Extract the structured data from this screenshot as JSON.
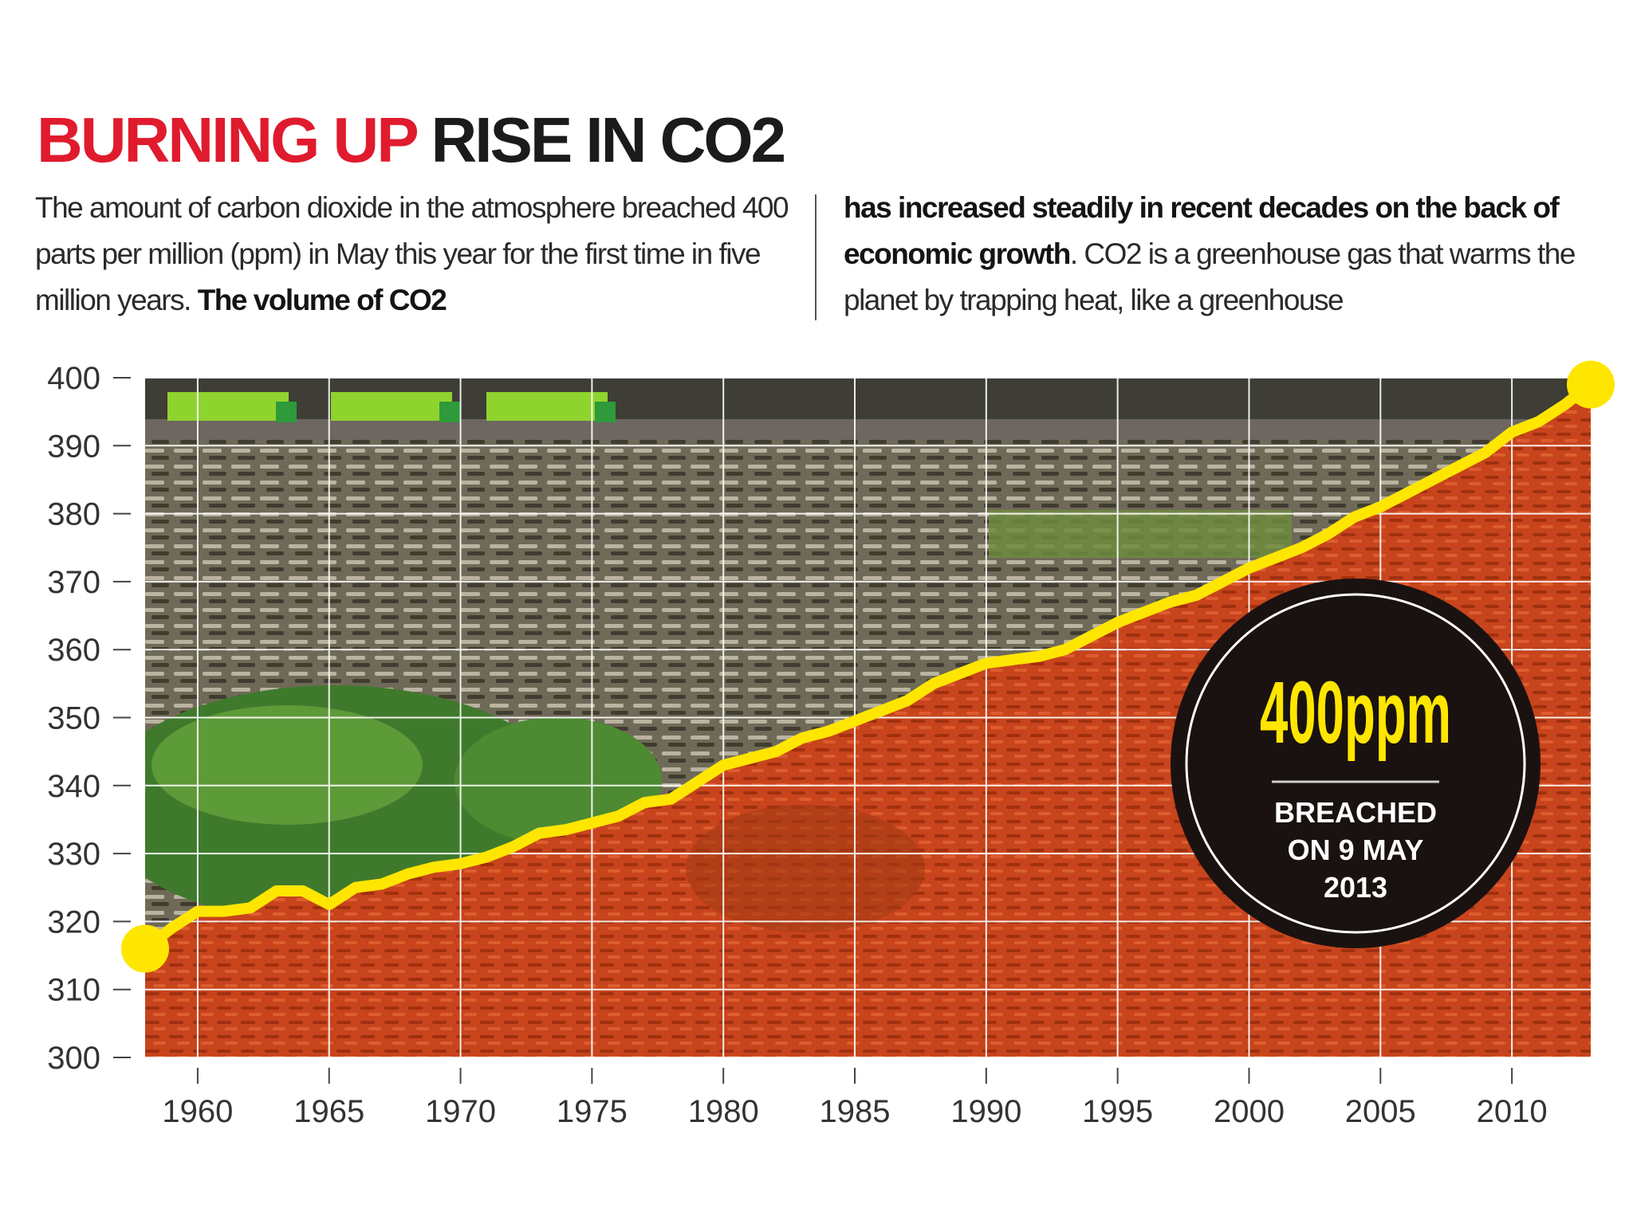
{
  "title": {
    "part1": "BURNING UP",
    "part2": "RISE IN CO2"
  },
  "intro": {
    "col1_text": "The amount of carbon dioxide in the atmosphere breached 400 parts per million (ppm) in May this year for the first time in five million years. ",
    "col1_bold": "The volume of CO2",
    "col2_bold": "has increased steadily in recent decades on the back of economic growth",
    "col2_text": ". CO2 is a greenhouse gas that warms the planet by trapping heat, like a greenhouse"
  },
  "badge": {
    "value": "400ppm",
    "line1": "BREACHED",
    "line2": "ON 9 MAY",
    "line3": "2013"
  },
  "colors": {
    "accent": "#e01b2d",
    "line": "#ffe600",
    "badge_bg": "#1a1210",
    "below_line": "#c8441c"
  },
  "chart_data": {
    "type": "line",
    "title": "",
    "xlabel": "",
    "ylabel": "",
    "xlim": [
      1958,
      2013
    ],
    "ylim": [
      300,
      400
    ],
    "xticks": [
      1960,
      1965,
      1970,
      1975,
      1980,
      1985,
      1990,
      1995,
      2000,
      2005,
      2010
    ],
    "yticks": [
      300,
      310,
      320,
      330,
      340,
      350,
      360,
      370,
      380,
      390,
      400
    ],
    "grid": true,
    "series": [
      {
        "x": [
          1958,
          1959,
          1960,
          1961,
          1962,
          1963,
          1964,
          1965,
          1966,
          1967,
          1968,
          1969,
          1970,
          1971,
          1972,
          1973,
          1974,
          1975,
          1976,
          1977,
          1978,
          1979,
          1980,
          1981,
          1982,
          1983,
          1984,
          1985,
          1986,
          1987,
          1988,
          1989,
          1990,
          1991,
          1992,
          1993,
          1994,
          1995,
          1996,
          1997,
          1998,
          1999,
          2000,
          2001,
          2002,
          2003,
          2004,
          2005,
          2006,
          2007,
          2008,
          2009,
          2010,
          2011,
          2012,
          2013
        ],
        "y": [
          316,
          319,
          321.5,
          321.5,
          322,
          324.5,
          324.5,
          322.5,
          325,
          325.5,
          327,
          328,
          328.5,
          329.5,
          331,
          333,
          333.5,
          334.5,
          335.5,
          337.5,
          338,
          340.5,
          343,
          344,
          345,
          347,
          348,
          349.5,
          351,
          352.5,
          355,
          356.5,
          358,
          358.5,
          359,
          360,
          362,
          364,
          365.5,
          367,
          368,
          370,
          372,
          373.5,
          375,
          377,
          379.5,
          381,
          383,
          385,
          387,
          389,
          392,
          393.5,
          396,
          399
        ]
      }
    ]
  }
}
